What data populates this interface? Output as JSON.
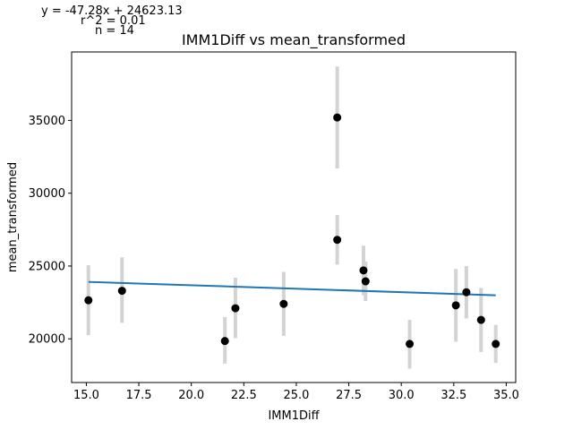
{
  "chart_data": {
    "type": "scatter",
    "title": "IMM1Diff vs mean_transformed",
    "xlabel": "IMM1Diff",
    "ylabel": "mean_transformed",
    "xlim": [
      14.3,
      35.45
    ],
    "ylim": [
      17000,
      39700
    ],
    "xticks": [
      15.0,
      17.5,
      20.0,
      22.5,
      25.0,
      27.5,
      30.0,
      32.5,
      35.0
    ],
    "xtick_labels": [
      "15.0",
      "17.5",
      "20.0",
      "22.5",
      "25.0",
      "27.5",
      "30.0",
      "32.5",
      "35.0"
    ],
    "yticks": [
      20000,
      25000,
      30000,
      35000
    ],
    "ytick_labels": [
      "20000",
      "25000",
      "30000",
      "35000"
    ],
    "grid": false,
    "points": [
      {
        "x": 15.1,
        "y": 22650,
        "err_low": 20250,
        "err_high": 25050
      },
      {
        "x": 16.7,
        "y": 23300,
        "err_low": 21100,
        "err_high": 25600
      },
      {
        "x": 21.6,
        "y": 19850,
        "err_low": 18300,
        "err_high": 21500
      },
      {
        "x": 22.1,
        "y": 22100,
        "err_low": 20050,
        "err_high": 24200
      },
      {
        "x": 24.4,
        "y": 22400,
        "err_low": 20200,
        "err_high": 24600
      },
      {
        "x": 26.95,
        "y": 35200,
        "err_low": 31700,
        "err_high": 38700
      },
      {
        "x": 26.95,
        "y": 26800,
        "err_low": 25100,
        "err_high": 28500
      },
      {
        "x": 28.2,
        "y": 24700,
        "err_low": 23000,
        "err_high": 26400
      },
      {
        "x": 28.3,
        "y": 23950,
        "err_low": 22600,
        "err_high": 25300
      },
      {
        "x": 30.4,
        "y": 19650,
        "err_low": 17950,
        "err_high": 21300
      },
      {
        "x": 32.6,
        "y": 22300,
        "err_low": 19800,
        "err_high": 24800
      },
      {
        "x": 33.1,
        "y": 23200,
        "err_low": 21400,
        "err_high": 25000
      },
      {
        "x": 33.8,
        "y": 21300,
        "err_low": 19100,
        "err_high": 23500
      },
      {
        "x": 34.5,
        "y": 19650,
        "err_low": 18350,
        "err_high": 20950
      }
    ],
    "fit_line": {
      "slope": -47.28,
      "intercept": 24623.13,
      "x_range": [
        15.1,
        34.5
      ]
    },
    "annotation_lines": [
      "y = -47.28x + 24623.13",
      "r^2 = 0.01",
      "n = 14"
    ],
    "colors": {
      "points": "#000000",
      "errorbars": "#d3d3d3",
      "fit": "#1f77b4"
    }
  }
}
